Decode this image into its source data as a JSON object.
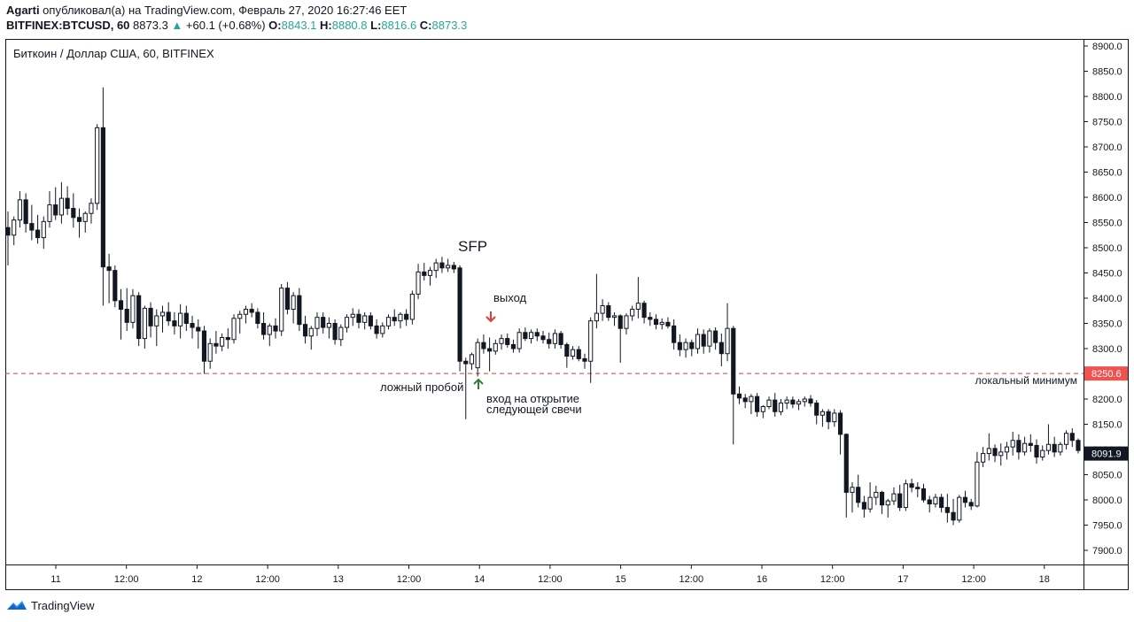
{
  "header": {
    "author": "Agarti",
    "published_text": " опубликовал(а) на TradingView.com, Февраль 27, 2020 16:27:46 EET",
    "symbol": "BITFINEX:BTCUSD, 60",
    "price": "8873.3",
    "change": "+60.1 (+0.68%)",
    "o_label": "O:",
    "o_value": "8843.1",
    "h_label": "H:",
    "h_value": "8880.8",
    "l_label": "L:",
    "l_value": "8816.6",
    "c_label": "C:",
    "c_value": "8873.3"
  },
  "chart_title": "Биткоин / Доллар США, 60, BITFINEX",
  "annotations": {
    "sfp": "SFP",
    "exit": "выход",
    "false_break": "ложный пробой",
    "entry_line1": "вход на открытие",
    "entry_line2": "следующей свечи",
    "local_min": "локальный минимум"
  },
  "price_labels": {
    "level": "8250.6",
    "current": "8091.9"
  },
  "footer": {
    "brand": "TradingView"
  },
  "colors": {
    "level_line": "#e53935",
    "level_badge": "#ef5350",
    "current_badge": "#131722",
    "arrow_down": "#e53935",
    "arrow_up": "#2e7d32",
    "brand_blue": "#2196f3",
    "up_text": "#26a69a"
  },
  "chart_data": {
    "type": "candlestick",
    "title": "Биткоин / Доллар США, 60, BITFINEX",
    "y_ticks": [
      7900,
      7950,
      8000,
      8050,
      8100,
      8150,
      8200,
      8250,
      8300,
      8350,
      8400,
      8450,
      8500,
      8550,
      8600,
      8650,
      8700,
      8750,
      8800,
      8850,
      8900
    ],
    "y_range": [
      7875,
      8915
    ],
    "x_ticks": [
      "11",
      "12:00",
      "12",
      "12:00",
      "13",
      "12:00",
      "14",
      "12:00",
      "15",
      "12:00",
      "16",
      "12:00",
      "17",
      "12:00",
      "18"
    ],
    "horizontal_level": 8250.6,
    "last_price": 8091.9,
    "candles": [
      [
        8540,
        8572,
        8465,
        8525
      ],
      [
        8525,
        8562,
        8505,
        8555
      ],
      [
        8555,
        8612,
        8540,
        8595
      ],
      [
        8595,
        8608,
        8530,
        8548
      ],
      [
        8548,
        8585,
        8515,
        8535
      ],
      [
        8535,
        8565,
        8508,
        8520
      ],
      [
        8520,
        8562,
        8498,
        8552
      ],
      [
        8552,
        8612,
        8540,
        8585
      ],
      [
        8585,
        8620,
        8555,
        8565
      ],
      [
        8565,
        8630,
        8548,
        8598
      ],
      [
        8598,
        8622,
        8565,
        8578
      ],
      [
        8578,
        8608,
        8540,
        8560
      ],
      [
        8560,
        8578,
        8520,
        8552
      ],
      [
        8552,
        8572,
        8530,
        8568
      ],
      [
        8568,
        8598,
        8548,
        8588
      ],
      [
        8588,
        8745,
        8575,
        8738
      ],
      [
        8738,
        8818,
        8385,
        8462
      ],
      [
        8462,
        8488,
        8390,
        8455
      ],
      [
        8455,
        8465,
        8382,
        8395
      ],
      [
        8395,
        8418,
        8318,
        8378
      ],
      [
        8378,
        8420,
        8335,
        8352
      ],
      [
        8352,
        8418,
        8340,
        8405
      ],
      [
        8405,
        8412,
        8305,
        8320
      ],
      [
        8320,
        8385,
        8300,
        8380
      ],
      [
        8380,
        8392,
        8322,
        8345
      ],
      [
        8345,
        8378,
        8305,
        8365
      ],
      [
        8365,
        8385,
        8332,
        8372
      ],
      [
        8372,
        8392,
        8345,
        8355
      ],
      [
        8355,
        8372,
        8328,
        8345
      ],
      [
        8345,
        8388,
        8320,
        8370
      ],
      [
        8370,
        8385,
        8335,
        8350
      ],
      [
        8350,
        8365,
        8320,
        8342
      ],
      [
        8342,
        8358,
        8300,
        8335
      ],
      [
        8335,
        8345,
        8250,
        8275
      ],
      [
        8275,
        8320,
        8260,
        8310
      ],
      [
        8310,
        8335,
        8290,
        8305
      ],
      [
        8305,
        8330,
        8295,
        8322
      ],
      [
        8322,
        8340,
        8300,
        8318
      ],
      [
        8318,
        8368,
        8310,
        8360
      ],
      [
        8360,
        8375,
        8330,
        8368
      ],
      [
        8368,
        8385,
        8350,
        8378
      ],
      [
        8378,
        8390,
        8362,
        8372
      ],
      [
        8372,
        8380,
        8340,
        8350
      ],
      [
        8350,
        8372,
        8318,
        8328
      ],
      [
        8328,
        8350,
        8305,
        8345
      ],
      [
        8345,
        8360,
        8320,
        8335
      ],
      [
        8335,
        8428,
        8325,
        8420
      ],
      [
        8420,
        8432,
        8368,
        8378
      ],
      [
        8378,
        8412,
        8350,
        8405
      ],
      [
        8405,
        8420,
        8335,
        8348
      ],
      [
        8348,
        8365,
        8310,
        8325
      ],
      [
        8325,
        8345,
        8298,
        8340
      ],
      [
        8340,
        8372,
        8325,
        8362
      ],
      [
        8362,
        8372,
        8330,
        8342
      ],
      [
        8342,
        8362,
        8320,
        8350
      ],
      [
        8350,
        8358,
        8308,
        8318
      ],
      [
        8318,
        8348,
        8305,
        8342
      ],
      [
        8342,
        8368,
        8332,
        8362
      ],
      [
        8362,
        8380,
        8345,
        8368
      ],
      [
        8368,
        8378,
        8340,
        8352
      ],
      [
        8352,
        8372,
        8338,
        8365
      ],
      [
        8365,
        8372,
        8338,
        8345
      ],
      [
        8345,
        8358,
        8320,
        8330
      ],
      [
        8330,
        8352,
        8322,
        8345
      ],
      [
        8345,
        8368,
        8338,
        8362
      ],
      [
        8362,
        8378,
        8345,
        8355
      ],
      [
        8355,
        8372,
        8340,
        8368
      ],
      [
        8368,
        8378,
        8345,
        8358
      ],
      [
        8358,
        8415,
        8348,
        8408
      ],
      [
        8408,
        8468,
        8398,
        8452
      ],
      [
        8452,
        8470,
        8435,
        8445
      ],
      [
        8445,
        8462,
        8425,
        8455
      ],
      [
        8455,
        8478,
        8440,
        8470
      ],
      [
        8470,
        8482,
        8450,
        8460
      ],
      [
        8460,
        8478,
        8452,
        8465
      ],
      [
        8465,
        8472,
        8450,
        8458
      ],
      [
        8460,
        8465,
        8255,
        8275
      ],
      [
        8275,
        8282,
        8160,
        8270
      ],
      [
        8270,
        8292,
        8258,
        8288
      ],
      [
        8262,
        8320,
        8245,
        8312
      ],
      [
        8312,
        8328,
        8290,
        8300
      ],
      [
        8300,
        8322,
        8255,
        8295
      ],
      [
        8295,
        8318,
        8288,
        8310
      ],
      [
        8310,
        8328,
        8298,
        8320
      ],
      [
        8320,
        8330,
        8302,
        8308
      ],
      [
        8308,
        8318,
        8292,
        8300
      ],
      [
        8300,
        8340,
        8292,
        8332
      ],
      [
        8332,
        8342,
        8315,
        8320
      ],
      [
        8320,
        8338,
        8310,
        8332
      ],
      [
        8332,
        8340,
        8315,
        8325
      ],
      [
        8325,
        8335,
        8310,
        8318
      ],
      [
        8318,
        8332,
        8300,
        8310
      ],
      [
        8310,
        8338,
        8300,
        8330
      ],
      [
        8330,
        8335,
        8300,
        8308
      ],
      [
        8308,
        8312,
        8262,
        8285
      ],
      [
        8285,
        8305,
        8278,
        8298
      ],
      [
        8298,
        8305,
        8275,
        8280
      ],
      [
        8280,
        8290,
        8260,
        8275
      ],
      [
        8275,
        8362,
        8232,
        8355
      ],
      [
        8355,
        8448,
        8340,
        8370
      ],
      [
        8370,
        8398,
        8355,
        8385
      ],
      [
        8385,
        8392,
        8355,
        8362
      ],
      [
        8362,
        8372,
        8345,
        8365
      ],
      [
        8365,
        8368,
        8272,
        8340
      ],
      [
        8340,
        8370,
        8328,
        8365
      ],
      [
        8365,
        8385,
        8355,
        8378
      ],
      [
        8378,
        8442,
        8360,
        8390
      ],
      [
        8390,
        8395,
        8350,
        8362
      ],
      [
        8362,
        8372,
        8345,
        8358
      ],
      [
        8358,
        8368,
        8338,
        8348
      ],
      [
        8348,
        8360,
        8338,
        8352
      ],
      [
        8352,
        8362,
        8340,
        8345
      ],
      [
        8345,
        8358,
        8298,
        8312
      ],
      [
        8312,
        8328,
        8285,
        8298
      ],
      [
        8298,
        8320,
        8282,
        8312
      ],
      [
        8312,
        8318,
        8285,
        8300
      ],
      [
        8300,
        8340,
        8290,
        8328
      ],
      [
        8328,
        8338,
        8290,
        8305
      ],
      [
        8305,
        8340,
        8292,
        8335
      ],
      [
        8335,
        8342,
        8298,
        8312
      ],
      [
        8312,
        8330,
        8265,
        8290
      ],
      [
        8290,
        8390,
        8275,
        8340
      ],
      [
        8340,
        8345,
        8110,
        8210
      ],
      [
        8210,
        8225,
        8190,
        8202
      ],
      [
        8202,
        8210,
        8182,
        8195
      ],
      [
        8195,
        8210,
        8170,
        8205
      ],
      [
        8205,
        8212,
        8165,
        8175
      ],
      [
        8175,
        8188,
        8162,
        8185
      ],
      [
        8185,
        8205,
        8180,
        8198
      ],
      [
        8198,
        8212,
        8165,
        8175
      ],
      [
        8175,
        8200,
        8168,
        8192
      ],
      [
        8192,
        8205,
        8180,
        8198
      ],
      [
        8198,
        8205,
        8182,
        8190
      ],
      [
        8190,
        8200,
        8178,
        8195
      ],
      [
        8195,
        8205,
        8185,
        8200
      ],
      [
        8200,
        8208,
        8185,
        8192
      ],
      [
        8192,
        8198,
        8150,
        8168
      ],
      [
        8168,
        8180,
        8145,
        8175
      ],
      [
        8175,
        8180,
        8140,
        8155
      ],
      [
        8155,
        8180,
        8145,
        8172
      ],
      [
        8172,
        8178,
        8090,
        8130
      ],
      [
        8130,
        8132,
        7965,
        8015
      ],
      [
        8015,
        8035,
        7975,
        8025
      ],
      [
        8025,
        8050,
        7985,
        7995
      ],
      [
        7995,
        8008,
        7965,
        7982
      ],
      [
        7982,
        8035,
        7975,
        8005
      ],
      [
        8005,
        8028,
        7990,
        8015
      ],
      [
        8015,
        8018,
        7972,
        7990
      ],
      [
        7990,
        8002,
        7965,
        7998
      ],
      [
        7998,
        8025,
        7990,
        8012
      ],
      [
        8012,
        8030,
        7978,
        7985
      ],
      [
        7985,
        8040,
        7978,
        8032
      ],
      [
        8032,
        8042,
        8015,
        8025
      ],
      [
        8025,
        8035,
        8005,
        8022
      ],
      [
        8022,
        8032,
        7995,
        8000
      ],
      [
        8000,
        8008,
        7975,
        7992
      ],
      [
        7992,
        8012,
        7985,
        8005
      ],
      [
        8005,
        8012,
        7975,
        7985
      ],
      [
        7985,
        8012,
        7955,
        7975
      ],
      [
        7975,
        8002,
        7950,
        7960
      ],
      [
        7960,
        8010,
        7955,
        8005
      ],
      [
        8005,
        8018,
        7985,
        7995
      ],
      [
        7995,
        8002,
        7980,
        7988
      ],
      [
        7988,
        8095,
        7985,
        8075
      ],
      [
        8075,
        8105,
        8065,
        8092
      ],
      [
        8092,
        8132,
        8078,
        8102
      ],
      [
        8102,
        8110,
        8075,
        8088
      ],
      [
        8088,
        8112,
        8068,
        8095
      ],
      [
        8095,
        8115,
        8080,
        8105
      ],
      [
        8105,
        8135,
        8088,
        8118
      ],
      [
        8118,
        8130,
        8080,
        8095
      ],
      [
        8095,
        8125,
        8088,
        8112
      ],
      [
        8112,
        8130,
        8095,
        8108
      ],
      [
        8108,
        8120,
        8072,
        8085
      ],
      [
        8085,
        8108,
        8078,
        8098
      ],
      [
        8098,
        8150,
        8090,
        8110
      ],
      [
        8110,
        8125,
        8085,
        8095
      ],
      [
        8095,
        8115,
        8088,
        8110
      ],
      [
        8110,
        8138,
        8100,
        8132
      ],
      [
        8132,
        8142,
        8105,
        8118
      ],
      [
        8118,
        8122,
        8092,
        8098
      ]
    ]
  }
}
